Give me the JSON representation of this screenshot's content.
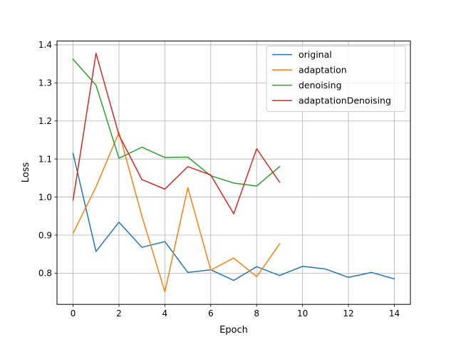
{
  "chart_data": {
    "type": "line",
    "xlabel": "Epoch",
    "ylabel": "Loss",
    "xlim": [
      -0.7,
      14.7
    ],
    "ylim": [
      0.718,
      1.41
    ],
    "xticks": [
      0,
      2,
      4,
      6,
      8,
      10,
      12,
      14
    ],
    "xtick_labels": [
      "0",
      "2",
      "4",
      "6",
      "8",
      "10",
      "12",
      "14"
    ],
    "yticks": [
      0.8,
      0.9,
      1.0,
      1.1,
      1.2,
      1.3,
      1.4
    ],
    "ytick_labels": [
      "0.8",
      "0.9",
      "1.0",
      "1.1",
      "1.2",
      "1.3",
      "1.4"
    ],
    "grid": true,
    "legend_position": "top-right",
    "series": [
      {
        "name": "original",
        "color": "#1f77b4",
        "x": [
          0,
          1,
          2,
          3,
          4,
          5,
          6,
          7,
          8,
          9,
          10,
          11,
          12,
          13,
          14
        ],
        "values": [
          1.115,
          0.857,
          0.934,
          0.868,
          0.883,
          0.802,
          0.809,
          0.781,
          0.817,
          0.794,
          0.818,
          0.811,
          0.789,
          0.802,
          0.785
        ]
      },
      {
        "name": "adaptation",
        "color": "#ff7f0e",
        "x": [
          0,
          1,
          2,
          3,
          4,
          5,
          6,
          7,
          8,
          9
        ],
        "values": [
          0.905,
          1.027,
          1.17,
          0.95,
          0.751,
          1.025,
          0.808,
          0.84,
          0.791,
          0.877
        ]
      },
      {
        "name": "denoising",
        "color": "#2ca02c",
        "x": [
          0,
          1,
          2,
          3,
          4,
          5,
          6,
          7,
          8,
          9
        ],
        "values": [
          1.362,
          1.294,
          1.102,
          1.131,
          1.104,
          1.105,
          1.056,
          1.037,
          1.029,
          1.08
        ]
      },
      {
        "name": "adaptationDenoising",
        "color": "#d62728",
        "x": [
          0,
          1,
          2,
          3,
          4,
          5,
          6,
          7,
          8,
          9
        ],
        "values": [
          0.992,
          1.378,
          1.163,
          1.046,
          1.021,
          1.08,
          1.058,
          0.956,
          1.127,
          1.039
        ]
      }
    ]
  }
}
